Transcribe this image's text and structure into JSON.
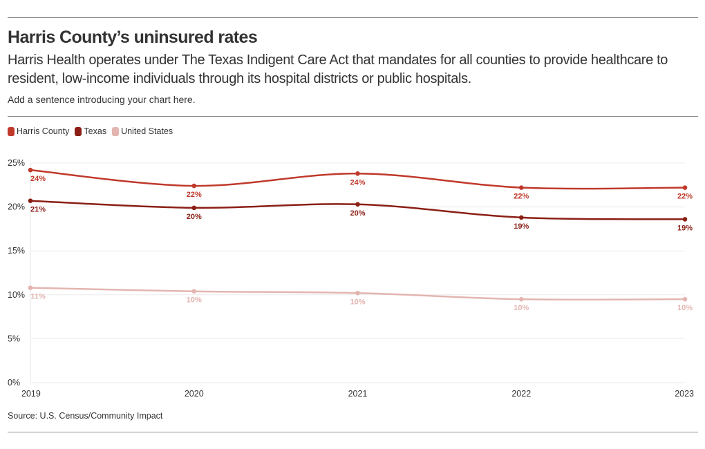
{
  "header": {
    "title": "Harris County’s uninsured rates",
    "subtitle": "Harris Health operates under The Texas Indigent Care Act that mandates for all counties to provide healthcare to resident, low-income individuals through its hospital districts or public hospitals.",
    "intro": "Add a sentence introducing your chart here."
  },
  "legend": [
    {
      "label": "Harris County",
      "color": "#c0392b"
    },
    {
      "label": "Texas",
      "color": "#8b1f15"
    },
    {
      "label": "United States",
      "color": "#e3b5b0"
    }
  ],
  "footer": {
    "source": "Source: U.S. Census/Community Impact"
  },
  "chart_data": {
    "type": "line",
    "title": "Harris County’s uninsured rates",
    "xlabel": "",
    "ylabel": "",
    "x": [
      "2019",
      "2020",
      "2021",
      "2022",
      "2023"
    ],
    "ylim": [
      0,
      25
    ],
    "yticks": [
      "0%",
      "5%",
      "10%",
      "15%",
      "20%",
      "25%"
    ],
    "grid": true,
    "series": [
      {
        "name": "Harris County",
        "color": "#c0392b",
        "values": [
          24.2,
          22.4,
          23.8,
          22.2,
          22.2
        ],
        "labels": [
          "24%",
          "22%",
          "24%",
          "22%",
          "22%"
        ]
      },
      {
        "name": "Texas",
        "color": "#8b1f15",
        "values": [
          20.7,
          19.9,
          20.3,
          18.8,
          18.6
        ],
        "labels": [
          "21%",
          "20%",
          "20%",
          "19%",
          "19%"
        ]
      },
      {
        "name": "United States",
        "color": "#e3b5b0",
        "values": [
          10.8,
          10.4,
          10.2,
          9.5,
          9.5
        ],
        "labels": [
          "11%",
          "10%",
          "10%",
          "10%",
          "10%"
        ]
      }
    ]
  }
}
